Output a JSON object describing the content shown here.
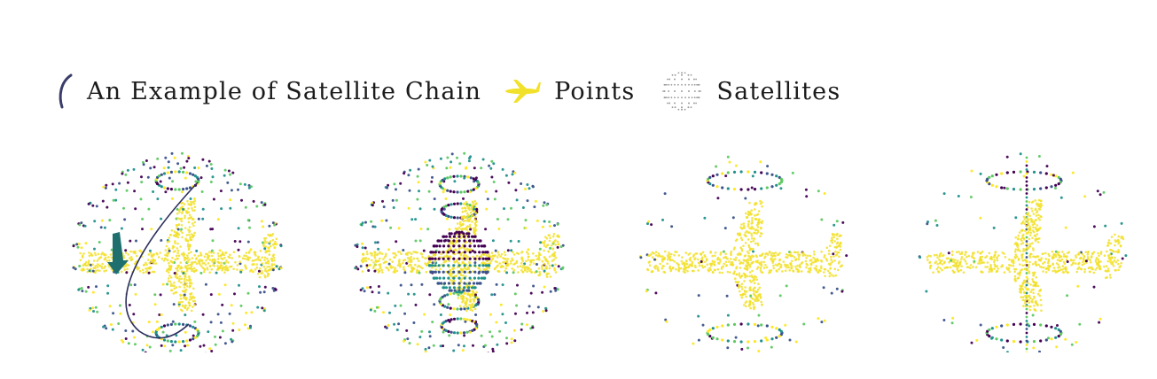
{
  "legend": {
    "chain_label": "An Example of Satellite Chain",
    "points_label": "Points",
    "satellites_label": "Satellites",
    "chain_icon": "chain-curve-icon",
    "points_icon": "airplane-points-icon",
    "satellites_icon": "satellite-sphere-icon"
  },
  "colors": {
    "points": "#f2e12a",
    "chain": "#2d2f5e",
    "chain_arrow": "#1f6f6e",
    "palette": [
      "#440154",
      "#3b528b",
      "#21918c",
      "#5ec962",
      "#fde725"
    ]
  },
  "panels": [
    {
      "name": "panel-1",
      "variant": "ring-chain",
      "has_chain": true,
      "has_central_sphere": false
    },
    {
      "name": "panel-2",
      "variant": "central-sphere",
      "has_chain": false,
      "has_central_sphere": true
    },
    {
      "name": "panel-3",
      "variant": "sparse-rings",
      "has_chain": false,
      "has_central_sphere": false
    },
    {
      "name": "panel-4",
      "variant": "sparse-meridian",
      "has_chain": false,
      "has_central_sphere": false
    }
  ]
}
